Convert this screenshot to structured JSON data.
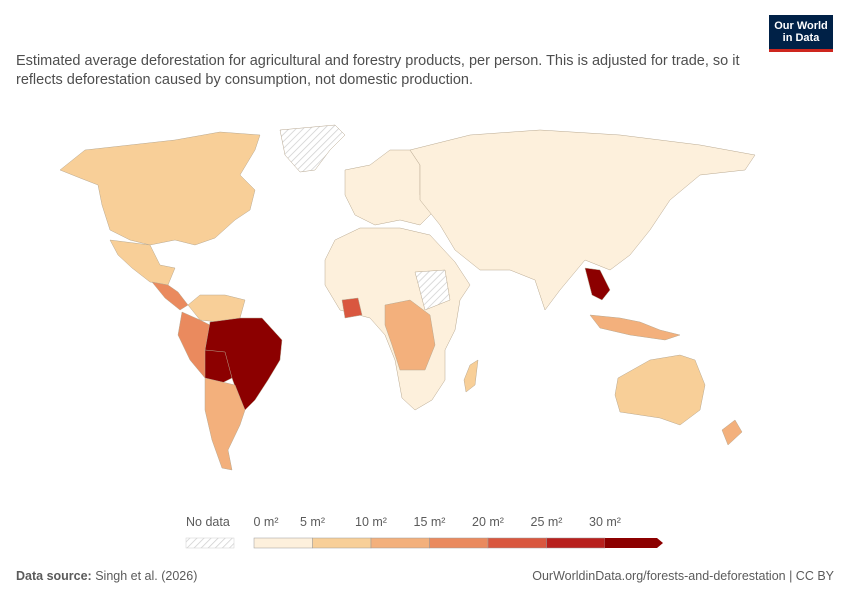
{
  "logo": {
    "line1": "Our World",
    "line2": "in Data"
  },
  "subtitle": "Estimated average deforestation for agricultural and forestry products, per person. This is adjusted for trade, so it reflects deforestation caused by consumption, not domestic production.",
  "legend": {
    "no_data_label": "No data",
    "ticks": [
      "0 m²",
      "5 m²",
      "10 m²",
      "15 m²",
      "20 m²",
      "25 m²",
      "30 m²"
    ],
    "colors": [
      "#fdf0dc",
      "#f8cf98",
      "#f3b07c",
      "#ea8a5e",
      "#d9573f",
      "#b8201d",
      "#8c0000"
    ]
  },
  "regions": [
    {
      "name": "North America",
      "color": "#f8cf98"
    },
    {
      "name": "Mexico",
      "color": "#f8cf98"
    },
    {
      "name": "Central America",
      "color": "#ea8a5e"
    },
    {
      "name": "Brazil",
      "color": "#8c0000"
    },
    {
      "name": "Bolivia",
      "color": "#8c0000"
    },
    {
      "name": "Peru / Ecuador",
      "color": "#ea8a5e"
    },
    {
      "name": "Colombia / Venezuela",
      "color": "#f8cf98"
    },
    {
      "name": "Argentina / Chile",
      "color": "#f3b07c"
    },
    {
      "name": "Europe",
      "color": "#fdf0dc"
    },
    {
      "name": "Russia / Asia",
      "color": "#fdf0dc"
    },
    {
      "name": "Africa",
      "color": "#fdf0dc"
    },
    {
      "name": "Central Africa",
      "color": "#f3b07c"
    },
    {
      "name": "Ivory Coast",
      "color": "#d9573f"
    },
    {
      "name": "Southeast Asia",
      "color": "#8c0000"
    },
    {
      "name": "Australia",
      "color": "#f8cf98"
    },
    {
      "name": "Greenland",
      "color": "no data"
    }
  ],
  "footer": {
    "source_label": "Data source:",
    "source_text": "Singh et al. (2026)",
    "right_text": "OurWorldinData.org/forests-and-deforestation | CC BY"
  }
}
